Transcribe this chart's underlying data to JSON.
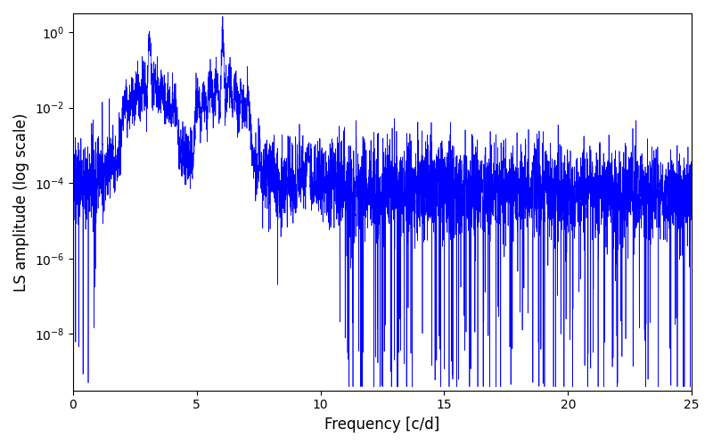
{
  "xlabel": "Frequency [c/d]",
  "ylabel": "LS amplitude (log scale)",
  "xlim": [
    0,
    25
  ],
  "ylim_log": [
    -9.5,
    0.5
  ],
  "line_color": "#0000ff",
  "line_width": 0.5,
  "background_color": "#ffffff",
  "peak1_freq": 3.1,
  "peak1_amp": 0.65,
  "peak2_freq": 6.05,
  "peak2_amp": 0.87,
  "base_noise_level_log": -4.0,
  "n_points": 5000,
  "freq_max": 25.0,
  "seed": 137
}
